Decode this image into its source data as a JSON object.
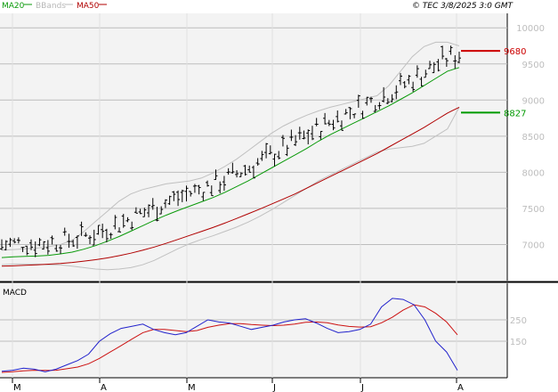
{
  "header": {
    "legend": [
      {
        "label": "MA20",
        "color": "#0a9a0a"
      },
      {
        "label": "BBands",
        "color": "#b8b8b8"
      },
      {
        "label": "MA50",
        "color": "#b00000"
      }
    ],
    "source": "© TEC 3/8/2025 3:0 GMT"
  },
  "colors": {
    "price_bars": "#000000",
    "ma20": "#0a9a0a",
    "ma50": "#b00000",
    "bbands": "#c0c0c0",
    "grid": "#bdbdbd",
    "panel_bg": "#f3f3f3",
    "macd_line": "#2222cc",
    "signal_line": "#cc1111",
    "resistance": "#cc0000",
    "support": "#009900"
  },
  "chart_data": [
    {
      "type": "ohlc",
      "panel": "price",
      "y_axis_ticks": [
        "10000",
        "9500",
        "9000",
        "8500",
        "8000",
        "7500",
        "7000"
      ],
      "ylim": [
        6500,
        10200
      ],
      "x_tick_labels": [
        "M",
        "A",
        "M",
        "J",
        "J",
        "A"
      ],
      "levels": [
        {
          "label": "9680",
          "value": 9680,
          "color": "#cc0000"
        },
        {
          "label": "8827",
          "value": 8827,
          "color": "#009900"
        }
      ],
      "series": [
        {
          "name": "MA20",
          "values": [
            6820,
            6830,
            6835,
            6840,
            6850,
            6870,
            6895,
            6935,
            6985,
            7045,
            7110,
            7185,
            7260,
            7335,
            7405,
            7470,
            7530,
            7590,
            7650,
            7720,
            7800,
            7880,
            7970,
            8060,
            8150,
            8240,
            8330,
            8430,
            8520,
            8600,
            8680,
            8760,
            8840,
            8920,
            9010,
            9100,
            9200,
            9300,
            9400,
            9450
          ]
        },
        {
          "name": "MA50",
          "values": [
            6700,
            6705,
            6712,
            6720,
            6728,
            6738,
            6752,
            6770,
            6790,
            6815,
            6845,
            6880,
            6920,
            6965,
            7015,
            7070,
            7125,
            7180,
            7235,
            7295,
            7360,
            7425,
            7490,
            7560,
            7630,
            7700,
            7780,
            7860,
            7940,
            8020,
            8100,
            8180,
            8260,
            8350,
            8440,
            8530,
            8620,
            8720,
            8820,
            8900
          ]
        },
        {
          "name": "BBands upper",
          "values": [
            6920,
            6930,
            6940,
            6950,
            6970,
            7000,
            7060,
            7180,
            7320,
            7460,
            7600,
            7700,
            7760,
            7800,
            7840,
            7860,
            7880,
            7920,
            7990,
            8080,
            8180,
            8300,
            8420,
            8540,
            8640,
            8720,
            8790,
            8850,
            8900,
            8940,
            8980,
            9020,
            9060,
            9200,
            9400,
            9600,
            9740,
            9800,
            9800,
            9750
          ]
        },
        {
          "name": "BBands lower",
          "values": [
            6720,
            6730,
            6730,
            6730,
            6720,
            6720,
            6700,
            6680,
            6660,
            6650,
            6660,
            6680,
            6720,
            6780,
            6860,
            6940,
            7010,
            7070,
            7120,
            7180,
            7240,
            7310,
            7390,
            7480,
            7580,
            7680,
            7780,
            7880,
            7960,
            8040,
            8120,
            8200,
            8280,
            8320,
            8340,
            8360,
            8400,
            8500,
            8600,
            8900
          ]
        }
      ]
    },
    {
      "type": "line",
      "panel": "macd",
      "title": "MACD",
      "y_axis_ticks": [
        "250",
        "150"
      ],
      "ylim": [
        -20,
        420
      ],
      "series": [
        {
          "name": "MACD",
          "values": [
            10,
            15,
            25,
            20,
            8,
            20,
            40,
            60,
            90,
            150,
            185,
            210,
            220,
            230,
            205,
            190,
            180,
            190,
            220,
            250,
            240,
            235,
            220,
            205,
            215,
            225,
            240,
            250,
            255,
            235,
            210,
            190,
            195,
            205,
            230,
            310,
            350,
            345,
            320,
            250,
            150,
            100,
            15
          ]
        },
        {
          "name": "Signal",
          "values": [
            5,
            8,
            12,
            15,
            14,
            15,
            22,
            30,
            45,
            70,
            100,
            130,
            160,
            190,
            205,
            205,
            200,
            195,
            200,
            215,
            225,
            232,
            232,
            228,
            225,
            223,
            225,
            230,
            238,
            240,
            236,
            226,
            219,
            216,
            218,
            236,
            262,
            295,
            320,
            310,
            280,
            240,
            180
          ]
        }
      ]
    }
  ]
}
